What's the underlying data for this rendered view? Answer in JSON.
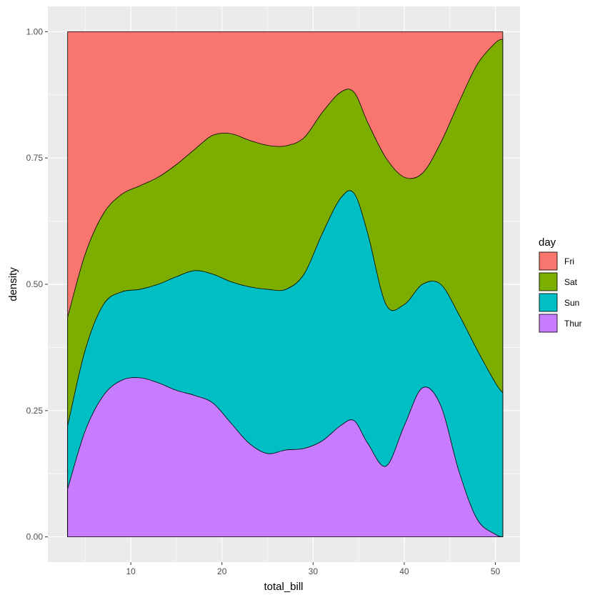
{
  "chart_data": {
    "type": "area",
    "subtype": "stacked-density-fill",
    "title": "",
    "xlabel": "total_bill",
    "ylabel": "density",
    "xlim": [
      0.9,
      52.7
    ],
    "ylim": [
      -0.05,
      1.05
    ],
    "x_ticks": [
      10,
      20,
      30,
      40,
      50
    ],
    "y_ticks": [
      0.0,
      0.25,
      0.5,
      0.75,
      1.0
    ],
    "y_tick_labels": [
      "0.00",
      "0.25",
      "0.50",
      "0.75",
      "1.00"
    ],
    "x": [
      3.07,
      5,
      7,
      9,
      11,
      13,
      15,
      17,
      19,
      21,
      23,
      25,
      27,
      29,
      31,
      33,
      34.5,
      36,
      38,
      40,
      42,
      44,
      46,
      48,
      50,
      50.81
    ],
    "series": [
      {
        "name": "Thur",
        "color": "#C77CFF",
        "cum": [
          0.095,
          0.21,
          0.28,
          0.31,
          0.315,
          0.305,
          0.29,
          0.28,
          0.265,
          0.225,
          0.185,
          0.165,
          0.172,
          0.175,
          0.19,
          0.22,
          0.23,
          0.185,
          0.14,
          0.22,
          0.295,
          0.26,
          0.13,
          0.035,
          0.005,
          0.0
        ]
      },
      {
        "name": "Sun",
        "color": "#00BFC4",
        "cum": [
          0.22,
          0.37,
          0.46,
          0.485,
          0.49,
          0.5,
          0.515,
          0.527,
          0.52,
          0.505,
          0.495,
          0.49,
          0.49,
          0.52,
          0.6,
          0.67,
          0.68,
          0.6,
          0.46,
          0.46,
          0.5,
          0.5,
          0.44,
          0.37,
          0.305,
          0.285
        ]
      },
      {
        "name": "Sat",
        "color": "#7CAE00",
        "cum": [
          0.435,
          0.56,
          0.64,
          0.678,
          0.695,
          0.712,
          0.737,
          0.767,
          0.795,
          0.798,
          0.785,
          0.775,
          0.774,
          0.79,
          0.84,
          0.88,
          0.88,
          0.82,
          0.75,
          0.712,
          0.72,
          0.78,
          0.86,
          0.935,
          0.978,
          0.985
        ]
      },
      {
        "name": "Fri",
        "color": "#F8766D",
        "cum": [
          1.0,
          1.0,
          1.0,
          1.0,
          1.0,
          1.0,
          1.0,
          1.0,
          1.0,
          1.0,
          1.0,
          1.0,
          1.0,
          1.0,
          1.0,
          1.0,
          1.0,
          1.0,
          1.0,
          1.0,
          1.0,
          1.0,
          1.0,
          1.0,
          1.0,
          1.0
        ]
      }
    ],
    "legend": {
      "title": "day",
      "placement": "right",
      "entries": [
        "Fri",
        "Sat",
        "Sun",
        "Thur"
      ]
    },
    "panel_background": "#EBEBEB",
    "grid_color": "#FFFFFF",
    "grid": true,
    "outline_color": "#000000"
  }
}
